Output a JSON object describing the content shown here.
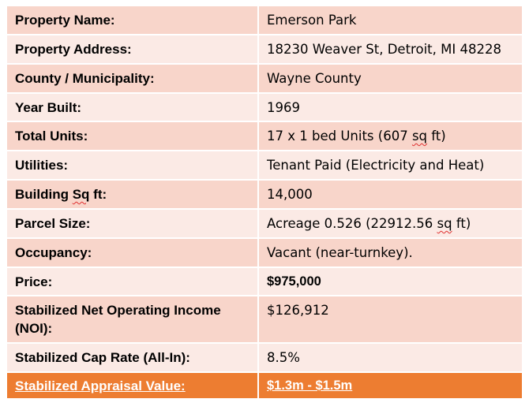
{
  "rows": [
    {
      "label": "Property Name:",
      "value": "Emerson Park"
    },
    {
      "label": "Property Address:",
      "value": "18230 Weaver St, Detroit, MI 48228"
    },
    {
      "label": "County / Municipality:",
      "value": "Wayne County"
    },
    {
      "label": "Year Built:",
      "value": "1969"
    },
    {
      "label": "Total Units:",
      "value_pre": "17 x 1 bed Units (607 ",
      "value_sq": "sq",
      "value_post": " ft)"
    },
    {
      "label": "Utilities:",
      "value": "Tenant Paid (Electricity and Heat)"
    },
    {
      "label_pre": "Building ",
      "label_sq": "Sq",
      "label_post": " ft:",
      "value": "14,000"
    },
    {
      "label": "Parcel Size:",
      "value_pre": "Acreage 0.526 (22912.56 ",
      "value_sq": "sq",
      "value_post": " ft)"
    },
    {
      "label": "Occupancy:",
      "value": "Vacant (near-turnkey)."
    },
    {
      "label": "Price:",
      "value": "$975,000"
    },
    {
      "label": "Stabilized Net Operating Income (NOI):",
      "value": "$126,912"
    },
    {
      "label": "Stabilized Cap Rate (All-In):",
      "value": "8.5%"
    },
    {
      "label": "Stabilized Appraisal Value:",
      "value": "$1.3m - $1.5m"
    }
  ],
  "colors": {
    "row_dark": "#f8d5ca",
    "row_light": "#fbeae5",
    "highlight": "#ed7d31"
  }
}
